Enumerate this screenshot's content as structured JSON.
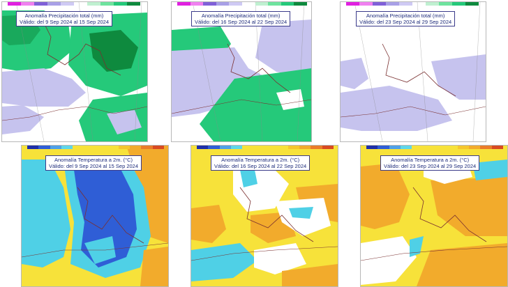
{
  "colors": {
    "precip_green": "#25c97a",
    "precip_dark_green": "#0e8a3e",
    "precip_lavender": "#c6c3ee",
    "temp_yellow": "#f7e23a",
    "temp_orange": "#f2ab2c",
    "temp_cyan": "#4fd0e6",
    "temp_blue": "#2f5ed6",
    "coast": "#7a3030"
  },
  "precip_scale": [
    "#e020e0",
    "#f080f0",
    "#8060d8",
    "#a8a0e6",
    "#cfcaf4",
    "#ffffff",
    "#bff0d0",
    "#6ee39e",
    "#25c97a",
    "#0e8a3e"
  ],
  "temp_scale_cold": [
    "#1e2fa8",
    "#2f5ed6",
    "#4fa0e8",
    "#5fd6ea"
  ],
  "temp_scale_warm": [
    "#f7e23a",
    "#f5c62e",
    "#f2ab2c",
    "#ea7c2a",
    "#d84a22"
  ],
  "panels": [
    {
      "title": "Anomalía Precipitación total (mm)",
      "valid": "Válido: del 9 Sep 2024 al 15 Sep 2024"
    },
    {
      "title": "Anomalía Precipitación total (mm)",
      "valid": "Válido: del 16 Sep 2024 al 22 Sep 2024"
    },
    {
      "title": "Anomalía Precipitación total (mm)",
      "valid": "Válido: del 23 Sep 2024 al 29 Sep 2024"
    },
    {
      "title": "Anomalía Temperatura a 2m. (°C)",
      "valid": "Válido: del 9 Sep 2024 al 15 Sep 2024"
    },
    {
      "title": "Anomalía Temperatura a 2m. (°C)",
      "valid": "Válido: del 16 Sep 2024 al 22 Sep 2024"
    },
    {
      "title": "Anomalía Temperatura a 2m. (°C)",
      "valid": "Válido: del 23 Sep 2024 al 29 Sep 2024"
    }
  ]
}
